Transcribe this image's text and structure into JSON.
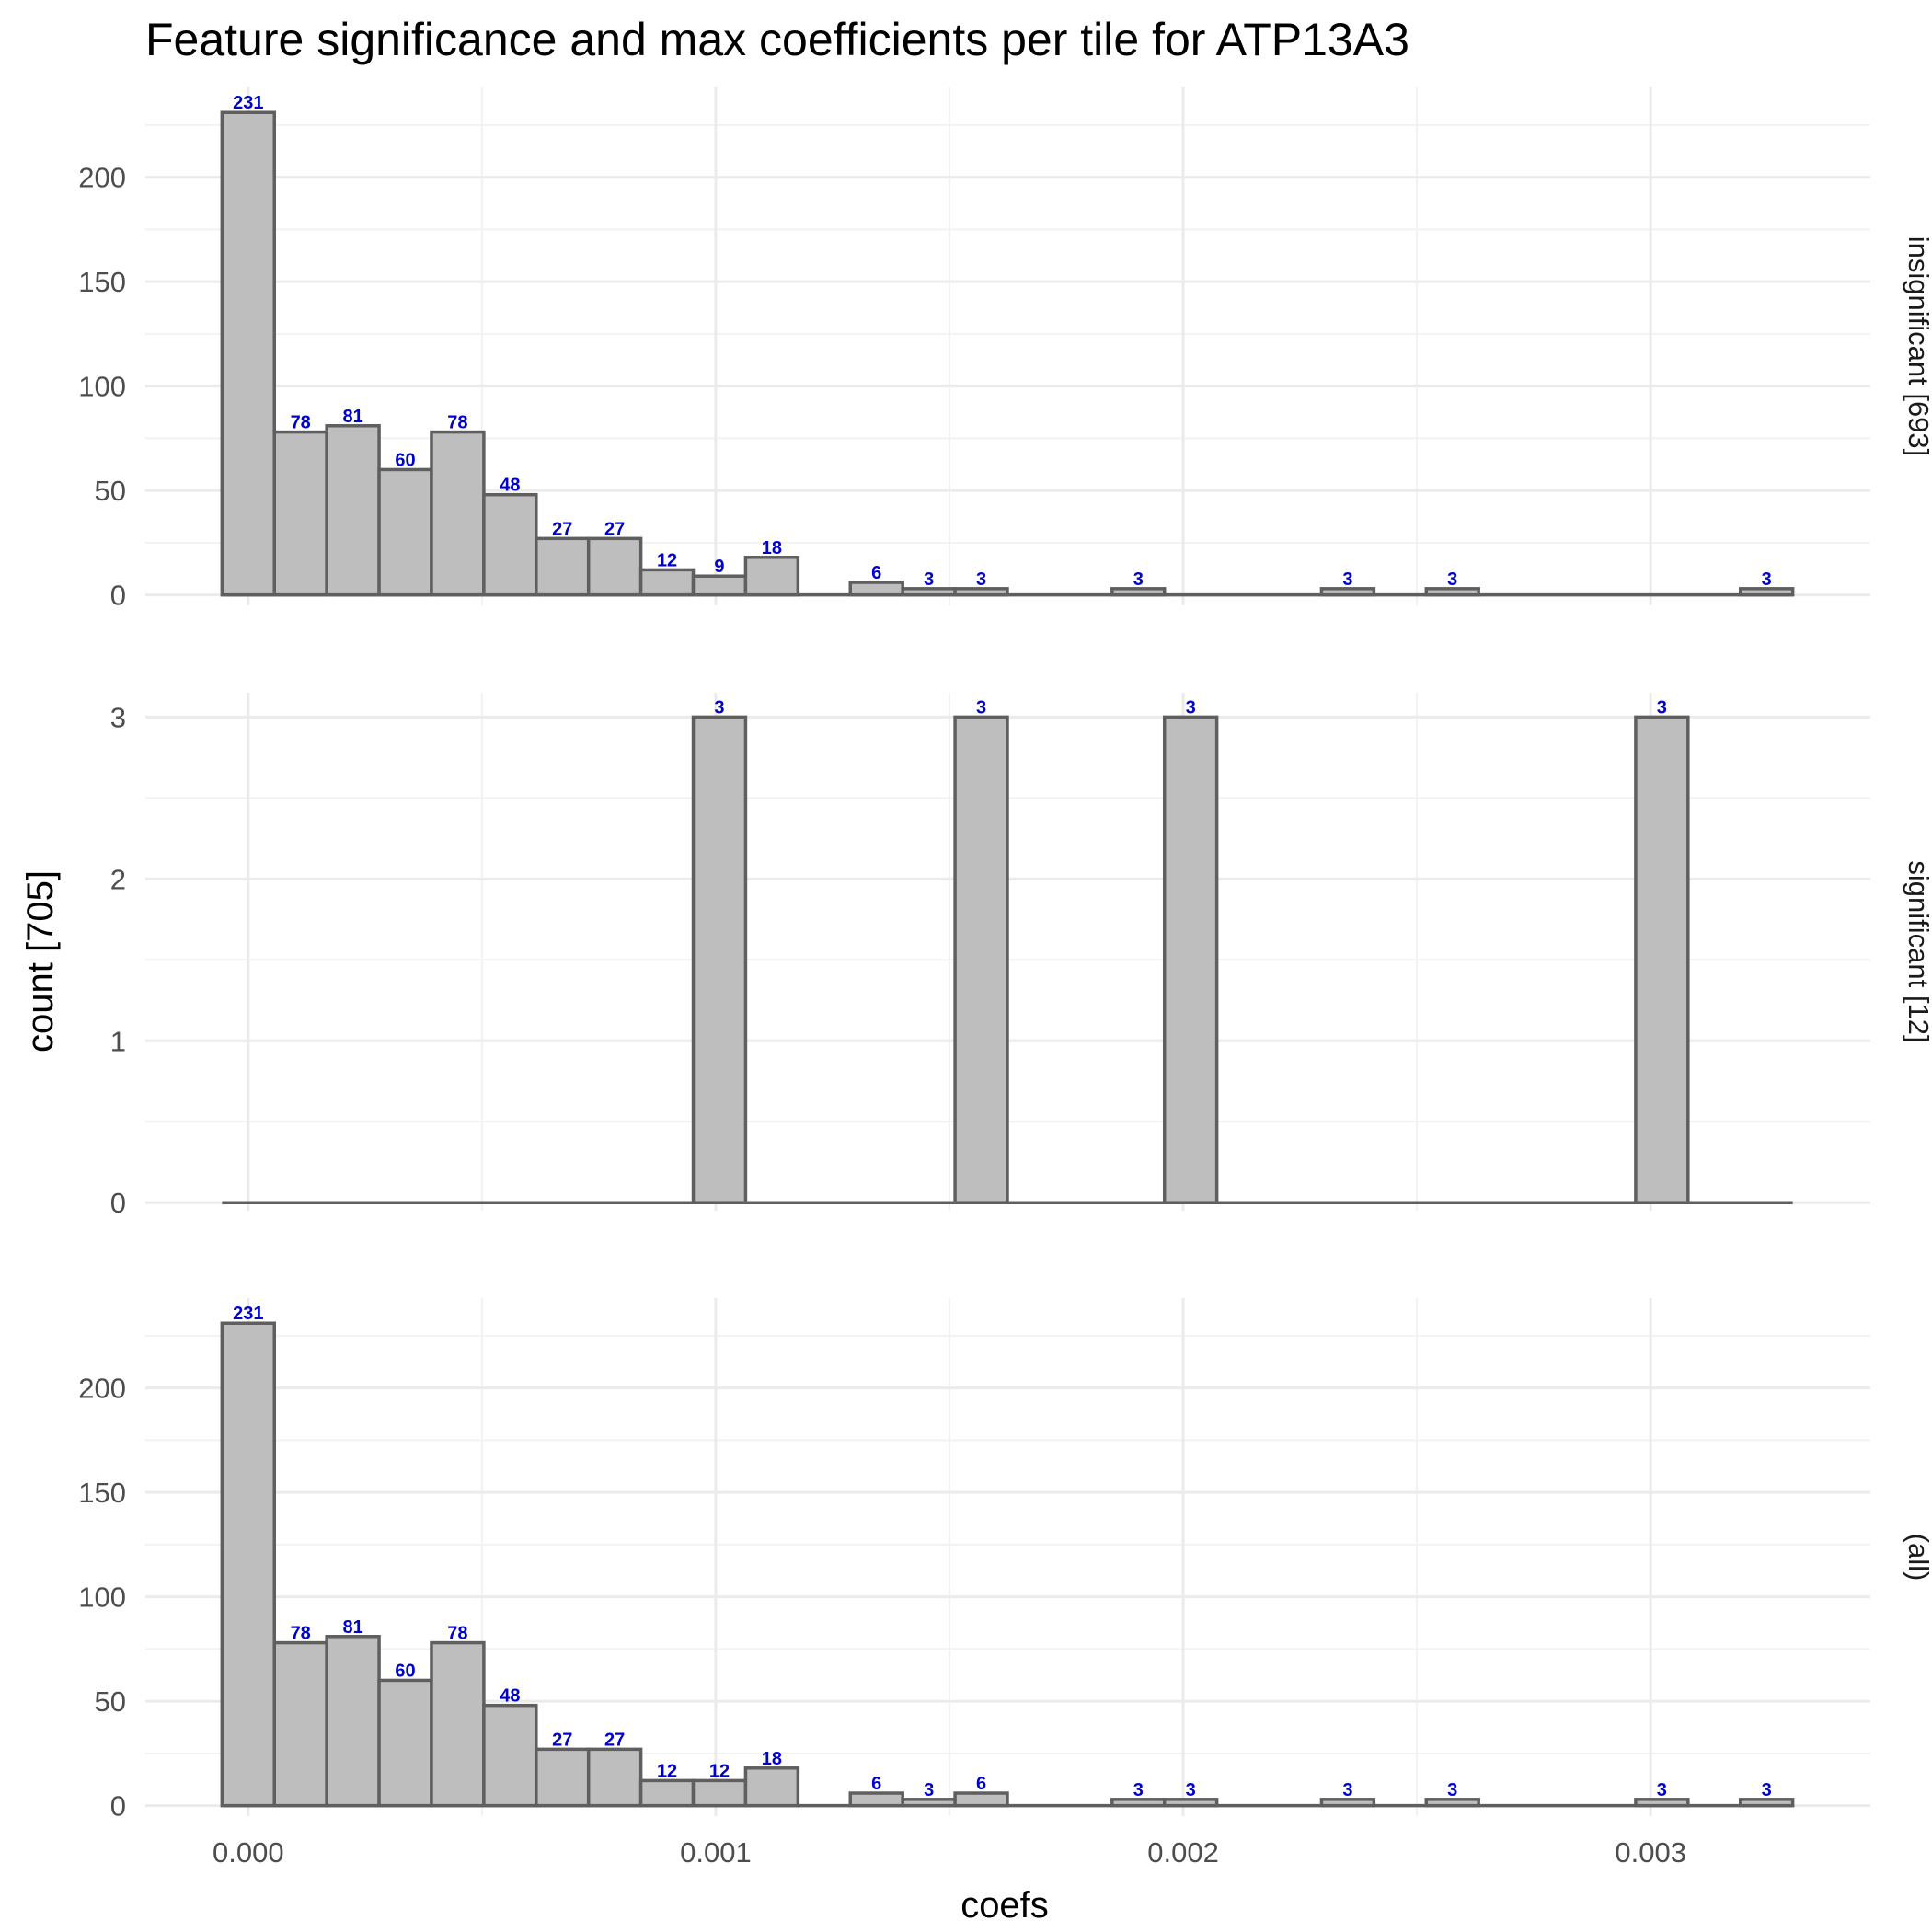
{
  "chart_data": {
    "type": "bar",
    "title": "Feature significance and max coefficients per tile for ATP13A3",
    "xlabel": "coefs",
    "ylabel": "count [705]",
    "xlim": [
      -0.00022,
      0.00347
    ],
    "x_ticks": [
      0.0,
      0.001,
      0.002,
      0.003
    ],
    "x_tick_labels": [
      "0.000",
      "0.001",
      "0.002",
      "0.003"
    ],
    "bin_width": 0.000112,
    "bin_centers": [
      0.0,
      0.000112,
      0.000224,
      0.000336,
      0.000448,
      0.00056,
      0.000672,
      0.000784,
      0.000896,
      0.001008,
      0.00112,
      0.001232,
      0.001344,
      0.001456,
      0.001568,
      0.00168,
      0.001792,
      0.001904,
      0.002016,
      0.002128,
      0.00224,
      0.002352,
      0.002464,
      0.002576,
      0.002688,
      0.0028,
      0.002912,
      0.003024,
      0.003136,
      0.003248
    ],
    "grid": true,
    "panels": [
      {
        "strip_label": "insignificant [693]",
        "ylim": [
          -5,
          243
        ],
        "y_ticks": [
          0,
          50,
          100,
          150,
          200
        ],
        "y_tick_labels": [
          "0",
          "50",
          "100",
          "150",
          "200"
        ],
        "values": [
          231,
          78,
          81,
          60,
          78,
          48,
          27,
          27,
          12,
          9,
          18,
          0,
          6,
          3,
          3,
          0,
          0,
          3,
          0,
          0,
          0,
          3,
          0,
          3,
          0,
          0,
          0,
          0,
          0,
          3
        ]
      },
      {
        "strip_label": "significant [12]",
        "ylim": [
          -0.05,
          3.15
        ],
        "y_ticks": [
          0,
          1,
          2,
          3
        ],
        "y_tick_labels": [
          "0",
          "1",
          "2",
          "3"
        ],
        "values": [
          0,
          0,
          0,
          0,
          0,
          0,
          0,
          0,
          0,
          3,
          0,
          0,
          0,
          0,
          3,
          0,
          0,
          0,
          3,
          0,
          0,
          0,
          0,
          0,
          0,
          0,
          0,
          3,
          0,
          0
        ]
      },
      {
        "strip_label": "(all)",
        "ylim": [
          -5,
          243
        ],
        "y_ticks": [
          0,
          50,
          100,
          150,
          200
        ],
        "y_tick_labels": [
          "0",
          "50",
          "100",
          "150",
          "200"
        ],
        "values": [
          231,
          78,
          81,
          60,
          78,
          48,
          27,
          27,
          12,
          12,
          18,
          0,
          6,
          3,
          6,
          0,
          0,
          3,
          3,
          0,
          0,
          3,
          0,
          3,
          0,
          0,
          0,
          3,
          0,
          3
        ]
      }
    ]
  },
  "colors": {
    "bar_fill": "#bebebe",
    "bar_outline": "#5f5f5f",
    "label": "#0000cc",
    "grid_major": "#ebebeb",
    "grid_minor": "#f2f2f2"
  }
}
